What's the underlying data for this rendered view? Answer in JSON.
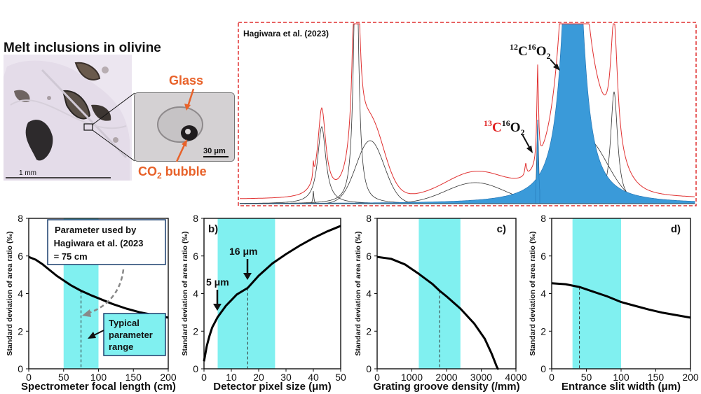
{
  "figure": {
    "photo_title": "Melt inclusions in olivine",
    "glass_label": "Glass",
    "bubble_label": "CO",
    "bubble_sub": "2",
    "bubble_suffix": " bubble",
    "inset_scale": "30 μm",
    "main_scale": "1 mm",
    "spectrum_citation": "Hagiwara et al. (2023)",
    "peak_12_text": "C",
    "peak_12_mass1": "12",
    "peak_12_mass2": "16",
    "peak_12_sub": "2",
    "peak_13_text": "C",
    "peak_13_mass1": "13",
    "peak_13_mass2": "16",
    "peak_13_sub": "2",
    "peak_letter_o": "O",
    "colors": {
      "accent_orange": "#e8622a",
      "fill_blue": "#3a9ad9",
      "spectrum_red": "#e03030",
      "band_cyan": "#80f0f0",
      "isotope_red": "#e02020"
    }
  },
  "chart_data": [
    {
      "type": "line",
      "panel": "a",
      "xlabel": "Spectrometer focal length (cm)",
      "ylabel": "Standard deviation of area ratio (‰)",
      "xlim": [
        0,
        200
      ],
      "ylim": [
        0,
        8
      ],
      "xticks": [
        0,
        50,
        100,
        150,
        200
      ],
      "yticks": [
        0,
        2,
        4,
        6,
        8
      ],
      "x": [
        0,
        10,
        20,
        30,
        40,
        50,
        60,
        75,
        90,
        100,
        120,
        140,
        160,
        180,
        200
      ],
      "y": [
        5.95,
        5.8,
        5.55,
        5.25,
        4.95,
        4.7,
        4.45,
        4.15,
        3.9,
        3.75,
        3.45,
        3.2,
        3.0,
        2.85,
        2.72
      ],
      "band": [
        50,
        100
      ],
      "marker": 75,
      "note_text": "Parameter used by Hagiwara et al. (2023) = 75 cm",
      "range_text": "Typical parameter range"
    },
    {
      "type": "line",
      "panel": "b",
      "panel_label": "b)",
      "xlabel": "Detector pixel size (μm)",
      "ylabel": "Standard deviation of area ratio (‰)",
      "xlim": [
        0,
        50
      ],
      "ylim": [
        0,
        8
      ],
      "xticks": [
        0,
        10,
        20,
        30,
        40,
        50
      ],
      "yticks": [
        0,
        2,
        4,
        6,
        8
      ],
      "x": [
        0,
        1,
        2,
        3,
        5,
        8,
        10,
        12,
        16,
        20,
        25,
        30,
        35,
        40,
        45,
        50
      ],
      "y": [
        0.4,
        1.2,
        1.75,
        2.2,
        2.75,
        3.35,
        3.65,
        3.95,
        4.3,
        4.95,
        5.6,
        6.1,
        6.55,
        6.95,
        7.3,
        7.6
      ],
      "band": [
        5,
        26
      ],
      "marker": 16,
      "callouts": [
        "5 μm",
        "16 μm"
      ]
    },
    {
      "type": "line",
      "panel": "c",
      "panel_label": "c)",
      "xlabel": "Grating groove density (/mm)",
      "ylabel": "Standard deviation of area ratio (‰)",
      "xlim": [
        0,
        4000
      ],
      "ylim": [
        0,
        8
      ],
      "xticks": [
        0,
        1000,
        2000,
        3000,
        4000
      ],
      "yticks": [
        0,
        2,
        4,
        6,
        8
      ],
      "x": [
        0,
        400,
        800,
        1200,
        1600,
        1800,
        2000,
        2400,
        2800,
        3100,
        3300,
        3450,
        3480,
        3500
      ],
      "y": [
        5.95,
        5.85,
        5.55,
        5.05,
        4.5,
        4.15,
        3.85,
        3.2,
        2.4,
        1.6,
        0.8,
        0.1,
        0.0,
        0.0
      ],
      "band": [
        1200,
        2400
      ],
      "marker": 1800
    },
    {
      "type": "line",
      "panel": "d",
      "panel_label": "d)",
      "xlabel": "Entrance slit width (μm)",
      "ylabel": "Standard deviation of area ratio (‰)",
      "xlim": [
        0,
        200
      ],
      "ylim": [
        0,
        8
      ],
      "xticks": [
        0,
        50,
        100,
        150,
        200
      ],
      "yticks": [
        0,
        2,
        4,
        6,
        8
      ],
      "x": [
        0,
        20,
        40,
        60,
        80,
        100,
        120,
        140,
        160,
        180,
        200
      ],
      "y": [
        4.55,
        4.5,
        4.35,
        4.1,
        3.85,
        3.55,
        3.35,
        3.15,
        2.98,
        2.85,
        2.72
      ],
      "band": [
        30,
        100
      ],
      "marker": 40
    }
  ]
}
